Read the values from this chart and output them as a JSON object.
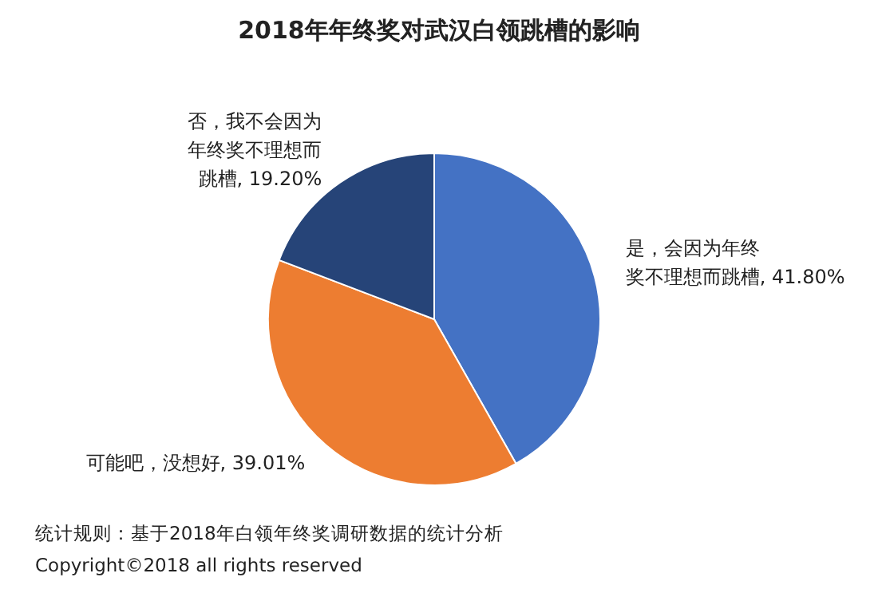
{
  "chart_data": {
    "type": "pie",
    "title": "2018年年终奖对武汉白领跳槽的影响",
    "categories": [
      "是，会因为年终奖不理想而跳槽",
      "可能吧，没想好",
      "否，我不会因为年终奖不理想而跳槽"
    ],
    "values": [
      41.8,
      39.01,
      19.2
    ],
    "colors": [
      "#4472c4",
      "#ed7d31",
      "#264478"
    ],
    "value_labels": [
      "41.80%",
      "39.01%",
      "19.20%"
    ],
    "annotations": [
      "统计规则：基于2018年白领年终奖调研数据的统计分析",
      "Copyright©2018 all rights reserved"
    ]
  }
}
